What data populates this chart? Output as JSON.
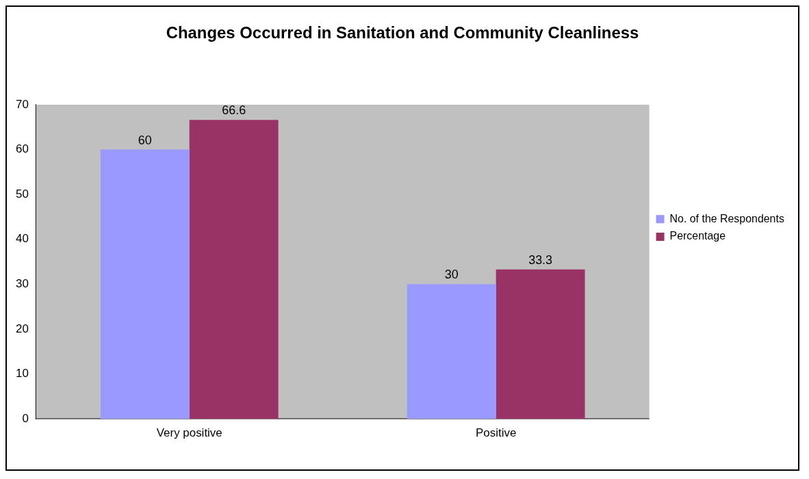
{
  "chart_data": {
    "type": "bar",
    "title": "Changes Occurred in Sanitation and Community Cleanliness",
    "categories": [
      "Very positive",
      "Positive"
    ],
    "series": [
      {
        "name": "No. of the Respondents",
        "color": "#9999ff",
        "values": [
          60,
          30
        ]
      },
      {
        "name": "Percentage",
        "color": "#993366",
        "values": [
          66.6,
          33.3
        ]
      }
    ],
    "ylim": [
      0,
      70
    ],
    "yticks": [
      0,
      10,
      20,
      30,
      40,
      50,
      60,
      70
    ],
    "grid": false,
    "legend": "right",
    "data_labels": true
  }
}
